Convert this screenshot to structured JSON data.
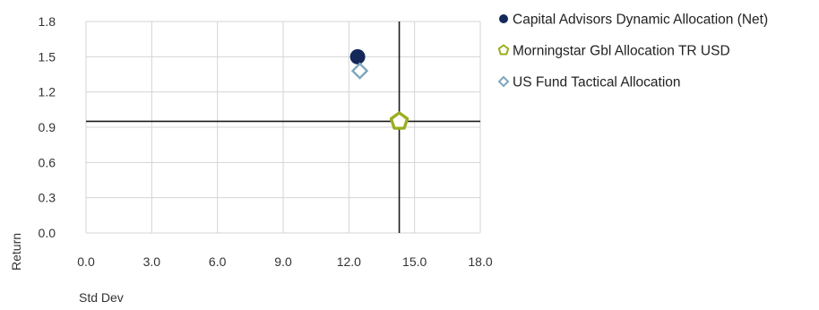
{
  "chart_data": {
    "type": "scatter",
    "xlabel": "Std Dev",
    "ylabel": "Return",
    "xlim": [
      0,
      18
    ],
    "ylim": [
      0,
      1.8
    ],
    "xticks": [
      "0.0",
      "3.0",
      "6.0",
      "9.0",
      "12.0",
      "15.0",
      "18.0"
    ],
    "yticks": [
      "0.0",
      "0.3",
      "0.6",
      "0.9",
      "1.2",
      "1.5",
      "1.8"
    ],
    "grid": true,
    "legend_position": "top-right",
    "series": [
      {
        "name": "Capital Advisors Dynamic Allocation (Net)",
        "marker": "circle",
        "color": "#14285a",
        "points": [
          {
            "x": 12.4,
            "y": 1.5
          }
        ]
      },
      {
        "name": "Morningstar Gbl Allocation TR USD",
        "marker": "pentagon",
        "color": "#9bad1e",
        "points": [
          {
            "x": 14.3,
            "y": 0.95
          }
        ]
      },
      {
        "name": "US Fund Tactical Allocation",
        "marker": "diamond",
        "color": "#7fa6bc",
        "points": [
          {
            "x": 12.5,
            "y": 1.38
          }
        ]
      }
    ],
    "reference_lines": {
      "vertical_x": 14.3,
      "horizontal_y": 0.95
    }
  }
}
